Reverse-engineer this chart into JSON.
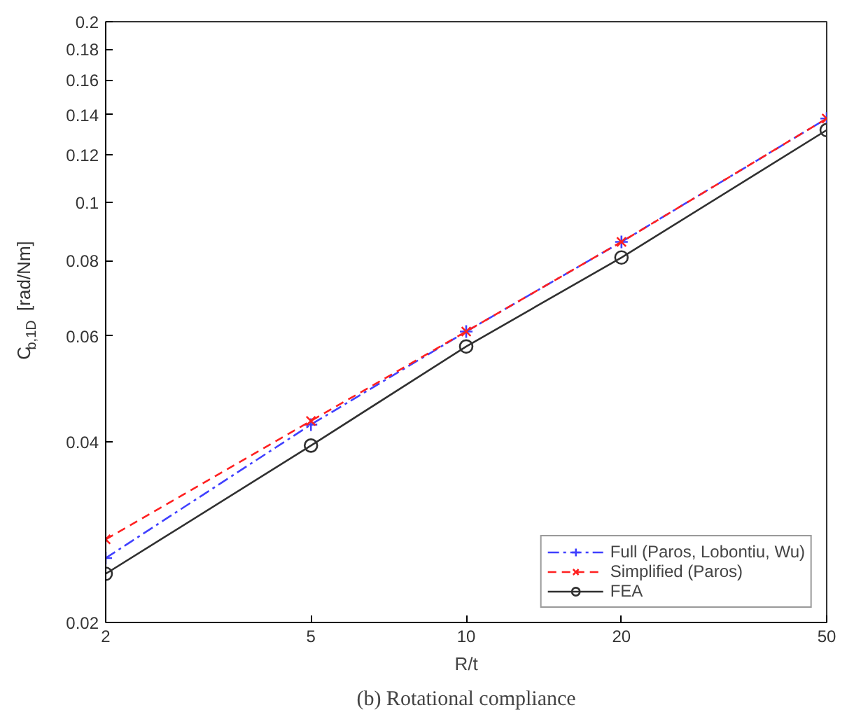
{
  "chart_data": {
    "type": "line",
    "title": "(b) Rotational compliance",
    "xlabel": "R/t",
    "ylabel": "C$_{b,1D}$ [rad/Nm]",
    "log": "xy",
    "x": [
      2,
      5,
      10,
      20,
      50
    ],
    "xlim": [
      2,
      50
    ],
    "xticks": [
      2,
      5,
      10,
      20,
      50
    ],
    "ylim": [
      0.02,
      0.2
    ],
    "yticks": [
      0.02,
      0.04,
      0.06,
      0.08,
      0.1,
      0.12,
      0.14,
      0.16,
      0.18,
      0.2
    ],
    "grid": false,
    "legend": "bottom right",
    "series": [
      {
        "name": "Full (Paros, Lobontiu, Wu)",
        "color": "#4040ff",
        "marker": "plus",
        "line_style": "dashdot",
        "values": [
          0.0256,
          0.0427,
          0.061,
          0.086,
          0.138
        ]
      },
      {
        "name": "Simplified (Paros)",
        "color": "#ff2020",
        "marker": "x",
        "line_style": "dashed",
        "values": [
          0.0275,
          0.0433,
          0.061,
          0.086,
          0.138
        ]
      },
      {
        "name": "FEA",
        "color": "#303030",
        "marker": "circle",
        "line_style": "solid",
        "values": [
          0.0241,
          0.0394,
          0.0576,
          0.081,
          0.132
        ]
      }
    ]
  }
}
